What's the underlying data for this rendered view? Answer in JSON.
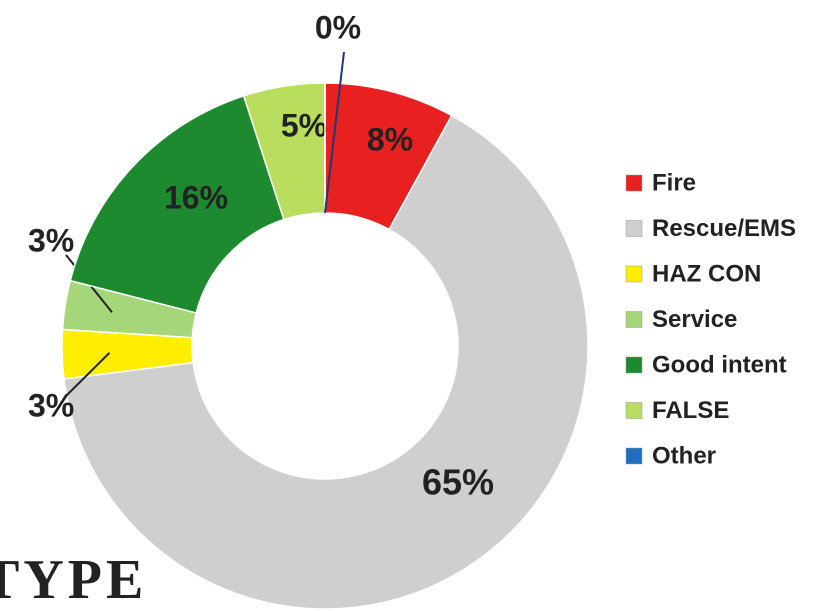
{
  "chart_data": {
    "type": "donut",
    "title": "TYPE",
    "categories": [
      "Fire",
      "Rescue/EMS",
      "HAZ CON",
      "Service",
      "Good intent",
      "FALSE",
      "Other"
    ],
    "values": [
      8,
      65,
      3,
      3,
      16,
      5,
      0
    ],
    "value_labels": [
      "8%",
      "65%",
      "3%",
      "3%",
      "16%",
      "5%",
      "0%"
    ],
    "colors": [
      "#e8201f",
      "#cfcfcf",
      "#ffee00",
      "#a6d67a",
      "#1e8a30",
      "#b9dd5c",
      "#1f6fc0"
    ],
    "legend": "right"
  }
}
